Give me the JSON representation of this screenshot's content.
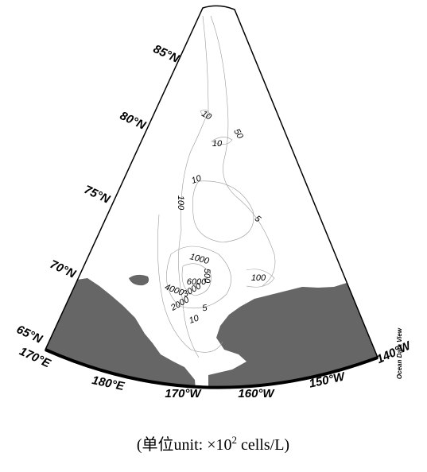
{
  "latitude_labels": [
    "85°N",
    "80°N",
    "75°N",
    "70°N",
    "65°N"
  ],
  "longitude_labels": [
    "170°E",
    "180°E",
    "170°W",
    "160°W",
    "150°W",
    "140°W"
  ],
  "contour_labels": [
    10,
    50,
    10,
    10,
    100,
    5,
    1000,
    500,
    6000,
    4000,
    3000,
    2000,
    5,
    10,
    100
  ],
  "watermark": "Ocean Data View",
  "caption": {
    "before": "(单位unit: ×10",
    "superscript": "2",
    "after": " cells/L)"
  }
}
